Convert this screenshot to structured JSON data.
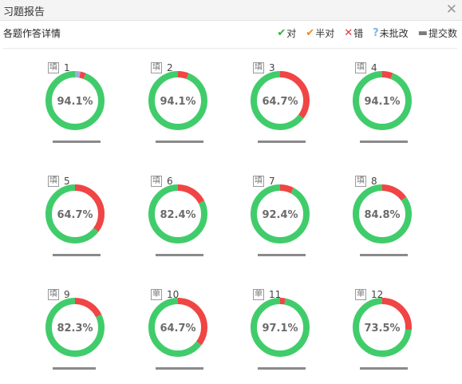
{
  "window": {
    "title": "习题报告"
  },
  "header": {
    "label": "各题作答详情"
  },
  "legend": [
    {
      "glyph": "✔",
      "text": "对",
      "cls": "g-ok"
    },
    {
      "glyph": "✔",
      "text": "半对",
      "cls": "g-half"
    },
    {
      "glyph": "✕",
      "text": "错",
      "cls": "g-wrong"
    },
    {
      "glyph": "?",
      "text": "未批改",
      "cls": "g-unchecked"
    },
    {
      "glyph": "▬",
      "text": "提交数",
      "cls": "g-submit"
    }
  ],
  "colors": {
    "correct": "#41cc6b",
    "wrong": "#f04545",
    "unchecked": "#a9a9d8",
    "track": "#e8e8e8"
  },
  "questions": [
    {
      "type": "填",
      "num": "1",
      "rate": "94.1%",
      "wrong": 0.03,
      "unchecked": 0.03,
      "submit": 1.0
    },
    {
      "type": "填",
      "num": "2",
      "rate": "94.1%",
      "wrong": 0.059,
      "unchecked": 0,
      "submit": 1.0
    },
    {
      "type": "填",
      "num": "3",
      "rate": "64.7%",
      "wrong": 0.353,
      "unchecked": 0,
      "submit": 1.0
    },
    {
      "type": "填",
      "num": "4",
      "rate": "94.1%",
      "wrong": 0.059,
      "unchecked": 0,
      "submit": 1.0
    },
    {
      "type": "填",
      "num": "5",
      "rate": "64.7%",
      "wrong": 0.353,
      "unchecked": 0,
      "submit": 1.0
    },
    {
      "type": "填",
      "num": "6",
      "rate": "82.4%",
      "wrong": 0.176,
      "unchecked": 0,
      "submit": 1.0
    },
    {
      "type": "填",
      "num": "7",
      "rate": "92.4%",
      "wrong": 0.076,
      "unchecked": 0,
      "submit": 1.0
    },
    {
      "type": "填",
      "num": "8",
      "rate": "84.8%",
      "wrong": 0.152,
      "unchecked": 0,
      "submit": 1.0
    },
    {
      "type": "填",
      "num": "9",
      "rate": "82.3%",
      "wrong": 0.177,
      "unchecked": 0,
      "submit": 0.9
    },
    {
      "type": "单",
      "num": "10",
      "rate": "64.7%",
      "wrong": 0.353,
      "unchecked": 0,
      "submit": 1.0
    },
    {
      "type": "单",
      "num": "11",
      "rate": "97.1%",
      "wrong": 0.029,
      "unchecked": 0,
      "submit": 1.0
    },
    {
      "type": "单",
      "num": "12",
      "rate": "73.5%",
      "wrong": 0.265,
      "unchecked": 0,
      "submit": 1.0
    }
  ]
}
